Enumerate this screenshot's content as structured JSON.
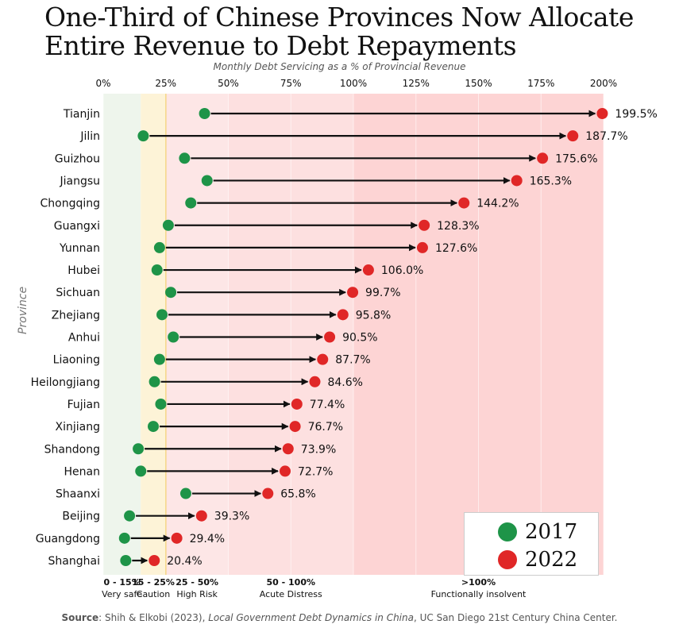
{
  "title": {
    "line1": "One-Third of Chinese Provinces Now Allocate",
    "line2": "Entire Revenue to Debt Repayments"
  },
  "chart_data": {
    "type": "dumbbell",
    "title": "One-Third of Chinese Provinces Now Allocate Entire Revenue to Debt Repayments",
    "subtitle": "Monthly Debt Servicing as a % of Provincial Revenue",
    "ylabel": "Province",
    "xlabel": "",
    "xlim": [
      0,
      200
    ],
    "xticks": [
      0,
      25,
      50,
      75,
      100,
      125,
      150,
      175,
      200
    ],
    "xtick_labels": [
      "0%",
      "25%",
      "50%",
      "75%",
      "100%",
      "125%",
      "150%",
      "175%",
      "200%"
    ],
    "series": [
      {
        "name": "2017",
        "color": "#1e9448"
      },
      {
        "name": "2022",
        "color": "#e02727"
      }
    ],
    "categories": [
      "Tianjin",
      "Jilin",
      "Guizhou",
      "Jiangsu",
      "Chongqing",
      "Guangxi",
      "Yunnan",
      "Hubei",
      "Sichuan",
      "Zhejiang",
      "Anhui",
      "Liaoning",
      "Heilongjiang",
      "Fujian",
      "Xinjiang",
      "Shandong",
      "Henan",
      "Shaanxi",
      "Beijing",
      "Guangdong",
      "Shanghai"
    ],
    "values_2017": [
      40.5,
      16.0,
      32.5,
      41.5,
      35.0,
      26.0,
      22.5,
      21.5,
      27.0,
      23.5,
      28.0,
      22.5,
      20.5,
      23.0,
      20.0,
      14.0,
      15.0,
      33.0,
      10.5,
      8.5,
      9.0
    ],
    "values_2022": [
      199.5,
      187.7,
      175.6,
      165.3,
      144.2,
      128.3,
      127.6,
      106.0,
      99.7,
      95.8,
      90.5,
      87.7,
      84.6,
      77.4,
      76.7,
      73.9,
      72.7,
      65.8,
      39.3,
      29.4,
      20.4
    ],
    "value_labels": [
      "199.5%",
      "187.7%",
      "175.6%",
      "165.3%",
      "144.2%",
      "128.3%",
      "127.6%",
      "106.0%",
      "99.7%",
      "95.8%",
      "90.5%",
      "87.7%",
      "84.6%",
      "77.4%",
      "76.7%",
      "73.9%",
      "72.7%",
      "65.8%",
      "39.3%",
      "29.4%",
      "20.4%"
    ],
    "zones": [
      {
        "from": 0,
        "to": 15,
        "range": "0 - 15%",
        "label": "Very safe",
        "color": "#eef5ec"
      },
      {
        "from": 15,
        "to": 25,
        "range": "15 - 25%",
        "label": "Caution",
        "color": "#fdf3d7"
      },
      {
        "from": 25,
        "to": 50,
        "range": "25 - 50%",
        "label": "High Risk",
        "color": "#fde6e6"
      },
      {
        "from": 50,
        "to": 100,
        "range": "50 - 100%",
        "label": "Acute Distress",
        "color": "#fde0e0"
      },
      {
        "from": 100,
        "to": 200,
        "range": ">100%",
        "label": "Functionally insolvent",
        "color": "#fdd4d4"
      }
    ],
    "legend": {
      "position": "bottom-right",
      "entries": [
        "2017",
        "2022"
      ]
    }
  },
  "source": {
    "label": "Source",
    "authors": "Shih & Elkobi (2023), ",
    "publication": "Local Government Debt Dynamics in China",
    "rest": ", UC San Diego 21st Century China Center."
  }
}
